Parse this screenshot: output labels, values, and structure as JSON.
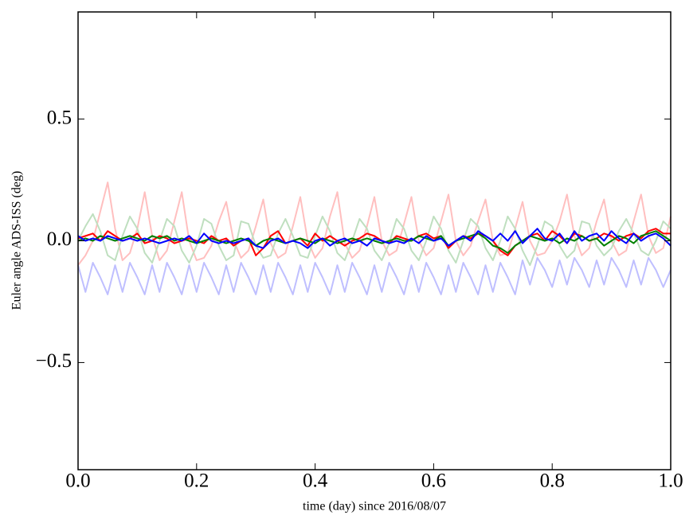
{
  "chart_data": {
    "type": "line",
    "xlabel": "time (day) since 2016/08/07",
    "ylabel": "Euler angle ADS-ISS (deg)",
    "xlim": [
      0,
      1
    ],
    "ylim": [
      -0.94,
      0.94
    ],
    "xticks": [
      {
        "value": 0,
        "label": "0.0"
      },
      0.2,
      0.4,
      0.6,
      0.8,
      {
        "value": 1,
        "label": "1.0"
      }
    ],
    "yticks": [
      {
        "value": -0.5,
        "label": "−0.5"
      },
      {
        "value": 0,
        "label": "0.0"
      },
      0.5
    ],
    "grid": false,
    "x": [
      0,
      0.0125,
      0.025,
      0.0375,
      0.05,
      0.0625,
      0.075,
      0.0875,
      0.1,
      0.1125,
      0.125,
      0.1375,
      0.15,
      0.1625,
      0.175,
      0.1875,
      0.2,
      0.2125,
      0.225,
      0.2375,
      0.25,
      0.2625,
      0.275,
      0.2875,
      0.3,
      0.3125,
      0.325,
      0.3375,
      0.35,
      0.3625,
      0.375,
      0.3875,
      0.4,
      0.4125,
      0.425,
      0.4375,
      0.45,
      0.4625,
      0.475,
      0.4875,
      0.5,
      0.5125,
      0.525,
      0.5375,
      0.55,
      0.5625,
      0.575,
      0.5875,
      0.6,
      0.6125,
      0.625,
      0.6375,
      0.65,
      0.6625,
      0.675,
      0.6875,
      0.7,
      0.7125,
      0.725,
      0.7375,
      0.75,
      0.7625,
      0.775,
      0.7875,
      0.8,
      0.8125,
      0.825,
      0.8375,
      0.85,
      0.8625,
      0.875,
      0.8875,
      0.9,
      0.9125,
      0.925,
      0.9375,
      0.95,
      0.9625,
      0.975,
      0.9875,
      1
    ],
    "series": [
      {
        "color": "#ffbfbf",
        "values": [
          -0.1,
          -0.06,
          0.0,
          0.12,
          0.24,
          0.05,
          -0.08,
          -0.05,
          0.05,
          0.2,
          0.02,
          -0.08,
          -0.04,
          0.08,
          0.2,
          0.0,
          -0.08,
          -0.07,
          -0.02,
          0.08,
          0.16,
          0.0,
          -0.07,
          -0.04,
          0.06,
          0.17,
          -0.01,
          -0.07,
          -0.05,
          0.06,
          0.18,
          0.0,
          -0.07,
          -0.03,
          0.1,
          0.2,
          -0.01,
          -0.07,
          -0.04,
          0.06,
          0.18,
          0.0,
          -0.06,
          -0.04,
          0.07,
          0.18,
          0.0,
          -0.06,
          -0.03,
          0.08,
          0.19,
          0.0,
          -0.06,
          -0.02,
          0.08,
          0.17,
          0.0,
          -0.06,
          -0.05,
          0.05,
          0.16,
          0.0,
          -0.06,
          -0.05,
          0.0,
          0.08,
          0.19,
          0.02,
          -0.06,
          -0.03,
          0.08,
          0.17,
          0.0,
          -0.06,
          -0.04,
          0.08,
          0.19,
          0.02,
          -0.05,
          -0.03,
          0.1
        ]
      },
      {
        "color": "#bfdfbf",
        "values": [
          0.0,
          0.06,
          0.11,
          0.04,
          -0.06,
          -0.08,
          0.02,
          0.1,
          0.05,
          -0.05,
          -0.09,
          0.0,
          0.09,
          0.06,
          -0.04,
          -0.09,
          -0.02,
          0.09,
          0.07,
          -0.02,
          -0.08,
          -0.06,
          0.08,
          0.07,
          -0.02,
          -0.07,
          -0.06,
          0.03,
          0.09,
          0.02,
          -0.06,
          -0.07,
          0.02,
          0.1,
          0.04,
          -0.05,
          -0.08,
          0.0,
          0.09,
          0.05,
          -0.04,
          -0.08,
          -0.01,
          0.09,
          0.05,
          -0.04,
          -0.08,
          0.0,
          0.1,
          0.05,
          -0.04,
          -0.09,
          0.0,
          0.09,
          0.06,
          -0.03,
          -0.08,
          0.0,
          0.1,
          0.05,
          -0.04,
          -0.1,
          -0.02,
          0.08,
          0.06,
          -0.02,
          -0.07,
          -0.04,
          0.08,
          0.07,
          -0.02,
          -0.06,
          -0.03,
          0.04,
          0.09,
          0.03,
          -0.04,
          -0.06,
          0.0,
          0.08,
          0.05
        ]
      },
      {
        "color": "#bfbfff",
        "values": [
          -0.1,
          -0.21,
          -0.09,
          -0.15,
          -0.22,
          -0.1,
          -0.21,
          -0.09,
          -0.15,
          -0.22,
          -0.1,
          -0.21,
          -0.09,
          -0.15,
          -0.22,
          -0.1,
          -0.21,
          -0.09,
          -0.15,
          -0.22,
          -0.1,
          -0.21,
          -0.09,
          -0.15,
          -0.22,
          -0.1,
          -0.21,
          -0.09,
          -0.15,
          -0.22,
          -0.1,
          -0.21,
          -0.09,
          -0.15,
          -0.22,
          -0.1,
          -0.21,
          -0.09,
          -0.15,
          -0.22,
          -0.1,
          -0.21,
          -0.09,
          -0.15,
          -0.22,
          -0.1,
          -0.21,
          -0.09,
          -0.15,
          -0.22,
          -0.1,
          -0.21,
          -0.09,
          -0.15,
          -0.22,
          -0.1,
          -0.21,
          -0.09,
          -0.15,
          -0.22,
          -0.08,
          -0.18,
          -0.07,
          -0.12,
          -0.19,
          -0.08,
          -0.18,
          -0.07,
          -0.12,
          -0.19,
          -0.08,
          -0.18,
          -0.07,
          -0.12,
          -0.19,
          -0.08,
          -0.18,
          -0.07,
          -0.12,
          -0.19,
          -0.12
        ]
      },
      {
        "color": "#ff0000",
        "values": [
          0.01,
          0.02,
          0.03,
          0.0,
          0.04,
          0.02,
          0.0,
          0.01,
          0.03,
          -0.01,
          0.0,
          0.02,
          0.01,
          -0.01,
          0.0,
          0.01,
          0.0,
          -0.01,
          0.02,
          0.0,
          0.01,
          -0.02,
          0.0,
          0.01,
          -0.06,
          -0.03,
          0.02,
          0.04,
          -0.01,
          0.0,
          0.01,
          -0.02,
          0.03,
          0.0,
          0.02,
          0.0,
          -0.02,
          0.0,
          0.01,
          0.03,
          0.02,
          0.0,
          -0.01,
          0.02,
          0.01,
          0.0,
          0.02,
          0.03,
          0.01,
          0.02,
          -0.03,
          0.0,
          0.02,
          0.01,
          0.03,
          0.02,
          0.0,
          -0.04,
          -0.06,
          -0.02,
          0.0,
          0.02,
          0.03,
          0.0,
          0.04,
          0.02,
          -0.01,
          0.03,
          0.02,
          0.0,
          0.01,
          0.03,
          0.02,
          0.0,
          0.02,
          0.03,
          0.01,
          0.04,
          0.05,
          0.03,
          0.03
        ]
      },
      {
        "color": "#008000",
        "values": [
          0.0,
          0.01,
          0.0,
          0.02,
          0.01,
          0.0,
          0.01,
          0.02,
          0.01,
          0.0,
          0.02,
          0.01,
          0.02,
          0.0,
          0.01,
          0.0,
          -0.01,
          0.0,
          0.01,
          0.0,
          -0.01,
          0.0,
          0.01,
          0.0,
          -0.02,
          0.0,
          0.01,
          0.0,
          -0.01,
          0.0,
          0.01,
          0.0,
          -0.01,
          0.01,
          0.0,
          -0.01,
          0.0,
          0.01,
          0.0,
          0.01,
          0.0,
          -0.01,
          0.0,
          0.01,
          0.0,
          0.0,
          0.02,
          0.01,
          0.0,
          0.02,
          -0.02,
          0.0,
          0.01,
          0.02,
          0.03,
          0.01,
          -0.02,
          -0.03,
          -0.05,
          -0.02,
          0.0,
          0.02,
          0.01,
          0.0,
          0.01,
          -0.01,
          0.01,
          0.0,
          0.02,
          0.0,
          0.01,
          -0.02,
          0.0,
          0.02,
          0.01,
          -0.01,
          0.02,
          0.03,
          0.04,
          0.02,
          0.0
        ]
      },
      {
        "color": "#0000ff",
        "values": [
          0.02,
          0.0,
          0.01,
          0.0,
          0.02,
          0.01,
          0.0,
          0.01,
          0.0,
          0.01,
          0.0,
          -0.01,
          0.0,
          0.01,
          0.0,
          0.02,
          -0.01,
          0.03,
          0.0,
          -0.01,
          0.0,
          -0.01,
          0.0,
          0.01,
          -0.02,
          -0.03,
          0.0,
          0.01,
          -0.01,
          0.0,
          -0.01,
          -0.03,
          0.0,
          0.01,
          -0.02,
          0.0,
          0.01,
          -0.01,
          0.0,
          -0.02,
          0.01,
          0.0,
          -0.01,
          0.0,
          -0.01,
          0.01,
          -0.01,
          0.02,
          0.0,
          0.01,
          -0.02,
          0.0,
          0.02,
          0.0,
          0.04,
          0.02,
          0.0,
          0.03,
          0.0,
          0.04,
          -0.01,
          0.02,
          0.05,
          0.01,
          0.0,
          0.03,
          -0.01,
          0.04,
          0.0,
          0.02,
          0.03,
          0.0,
          0.04,
          0.01,
          -0.01,
          0.03,
          0.0,
          0.02,
          0.03,
          0.01,
          -0.02
        ]
      }
    ]
  }
}
